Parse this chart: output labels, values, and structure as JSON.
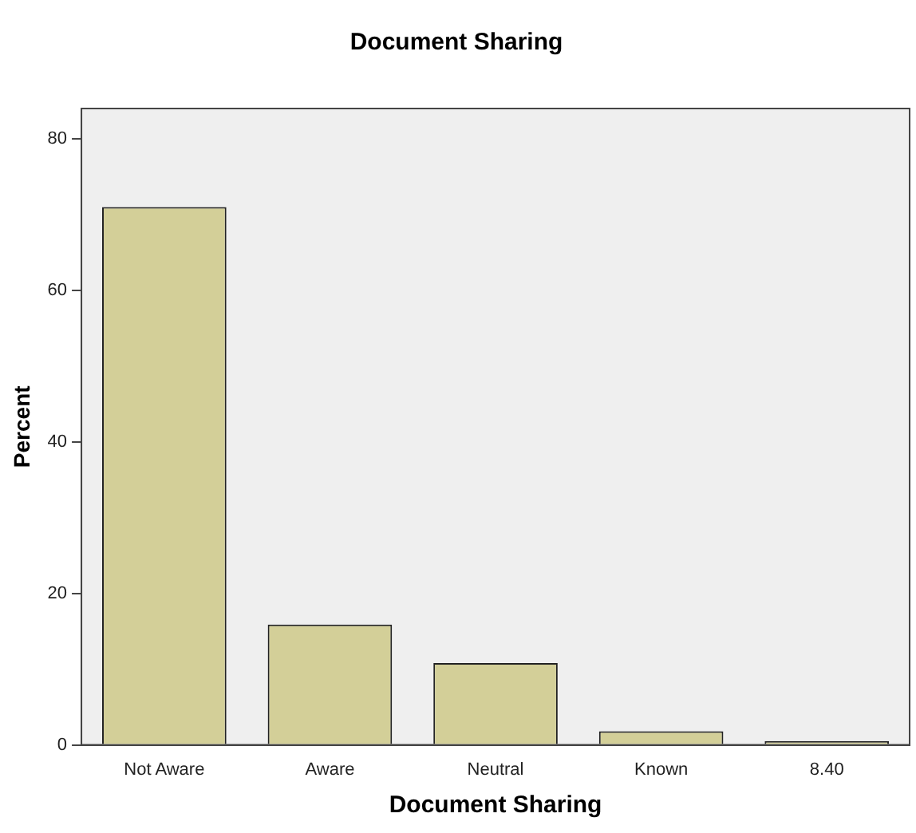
{
  "chart_data": {
    "type": "bar",
    "title": "Document Sharing",
    "xlabel": "Document Sharing",
    "ylabel": "Percent",
    "categories": [
      "Not Aware",
      "Aware",
      "Neutral",
      "Known",
      "8.40"
    ],
    "values": [
      71,
      15.9,
      10.8,
      1.8,
      0.5
    ],
    "color": "#d3cf98",
    "ylim": [
      0,
      84
    ],
    "yticks": [
      0,
      20,
      40,
      60,
      80
    ],
    "grid": false,
    "legend": false
  }
}
